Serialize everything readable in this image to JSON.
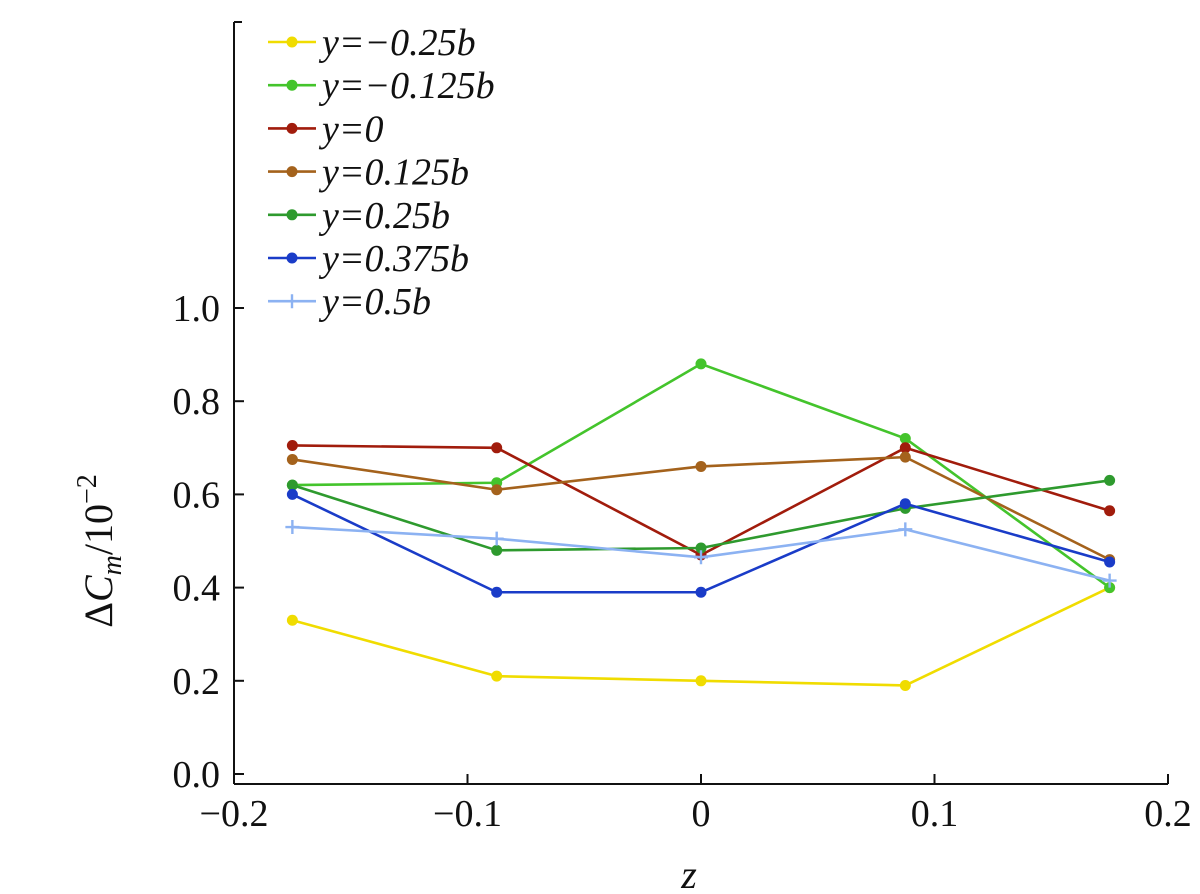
{
  "chart_data": {
    "type": "line",
    "xlabel": "z",
    "ylabel": "ΔC_m/10^−2",
    "xlim": [
      -0.2,
      0.2
    ],
    "ylim": [
      0.0,
      1.0
    ],
    "xticks": [
      -0.2,
      -0.1,
      0,
      0.1,
      0.2
    ],
    "xtick_labels": [
      "−0.2",
      "−0.1",
      "0",
      "0.1",
      "0.2"
    ],
    "yticks": [
      0.0,
      0.2,
      0.4,
      0.6,
      0.8,
      1.0
    ],
    "ytick_labels": [
      "0.0",
      "0.2",
      "0.4",
      "0.6",
      "0.8",
      "1.0"
    ],
    "grid": false,
    "legend_position": "top-left",
    "x": [
      -0.175,
      -0.0875,
      0,
      0.0875,
      0.175
    ],
    "series": [
      {
        "name": "y=−0.25b",
        "color": "#f0dc00",
        "marker": "circle",
        "values": [
          0.33,
          0.21,
          0.2,
          0.19,
          0.4
        ]
      },
      {
        "name": "y=−0.125b",
        "color": "#44c42c",
        "marker": "circle",
        "values": [
          0.62,
          0.625,
          0.88,
          0.72,
          0.4
        ]
      },
      {
        "name": "y=0",
        "color": "#a11c0c",
        "marker": "circle",
        "values": [
          0.705,
          0.7,
          0.47,
          0.7,
          0.565
        ]
      },
      {
        "name": "y=0.125b",
        "color": "#a4621c",
        "marker": "circle",
        "values": [
          0.675,
          0.61,
          0.66,
          0.68,
          0.46
        ]
      },
      {
        "name": "y=0.25b",
        "color": "#2e9a2e",
        "marker": "circle",
        "values": [
          0.62,
          0.48,
          0.485,
          0.57,
          0.63
        ]
      },
      {
        "name": "y=0.375b",
        "color": "#1a3cc8",
        "marker": "circle",
        "values": [
          0.6,
          0.39,
          0.39,
          0.58,
          0.455
        ]
      },
      {
        "name": "y=0.5b",
        "color": "#8cb2f2",
        "marker": "plus",
        "values": [
          0.53,
          0.505,
          0.465,
          0.525,
          0.415
        ]
      }
    ]
  }
}
